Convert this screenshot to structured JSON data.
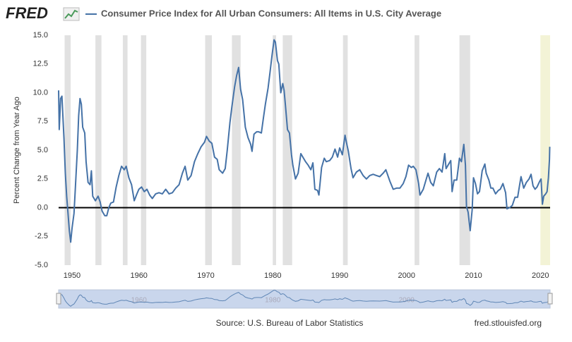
{
  "chart_data": {
    "type": "line",
    "logo": "FRED",
    "ylabel": "Percent Change from Year Ago",
    "source": "Source: U.S. Bureau of Labor Statistics",
    "site": "fred.stlouisfed.org",
    "xlim": [
      1948,
      2021.45
    ],
    "xticks": [
      1950,
      1960,
      1970,
      1980,
      1990,
      2000,
      2010,
      2020
    ],
    "ylim": [
      -5,
      15
    ],
    "yticks": [
      {
        "value": -5,
        "label": "-5.0"
      },
      -2.5,
      {
        "value": 0,
        "label": "0.0"
      },
      2.5,
      {
        "value": 5,
        "label": "5.0"
      },
      7.5,
      {
        "value": 10,
        "label": "10.0"
      },
      12.5,
      {
        "value": 15,
        "label": "15.0"
      }
    ],
    "grid": false,
    "baseline": 0,
    "recession_color": "#e1e1e1",
    "recessions": [
      [
        1948.9,
        1949.8
      ],
      [
        1953.5,
        1954.4
      ],
      [
        1957.6,
        1958.3
      ],
      [
        1960.3,
        1961.1
      ],
      [
        1969.9,
        1970.9
      ],
      [
        1973.9,
        1975.2
      ],
      [
        1980.0,
        1980.5
      ],
      [
        1981.5,
        1982.9
      ],
      [
        1990.5,
        1991.2
      ],
      [
        2001.2,
        2001.9
      ],
      [
        2007.9,
        2009.5
      ]
    ],
    "highlight_color": "#f3f3d6",
    "highlight": [
      2020.0,
      2021.45
    ],
    "navigator_ticks": [
      1960,
      1980,
      2000
    ],
    "x": [
      1948.0,
      1948.1,
      1948.3,
      1948.5,
      1948.8,
      1949.0,
      1949.2,
      1949.4,
      1949.6,
      1949.8,
      1950.0,
      1950.3,
      1950.5,
      1950.8,
      1951.0,
      1951.2,
      1951.4,
      1951.6,
      1951.9,
      1952.1,
      1952.4,
      1952.7,
      1952.9,
      1953.1,
      1953.5,
      1953.9,
      1954.2,
      1954.5,
      1954.9,
      1955.2,
      1955.5,
      1955.8,
      1956.2,
      1956.6,
      1957.0,
      1957.4,
      1957.8,
      1958.1,
      1958.5,
      1958.9,
      1959.3,
      1959.7,
      1960.0,
      1960.4,
      1960.8,
      1961.2,
      1961.6,
      1962.0,
      1962.5,
      1963.0,
      1963.5,
      1964.0,
      1964.5,
      1965.0,
      1965.5,
      1966.0,
      1966.5,
      1966.9,
      1967.3,
      1967.8,
      1968.3,
      1968.8,
      1969.3,
      1969.8,
      1970.1,
      1970.5,
      1970.9,
      1971.3,
      1971.7,
      1972.0,
      1972.5,
      1972.9,
      1973.2,
      1973.6,
      1973.9,
      1974.3,
      1974.6,
      1974.9,
      1975.2,
      1975.5,
      1975.9,
      1976.3,
      1976.7,
      1976.9,
      1977.2,
      1977.6,
      1977.9,
      1978.3,
      1978.6,
      1978.9,
      1979.3,
      1979.6,
      1979.9,
      1980.2,
      1980.4,
      1980.7,
      1980.9,
      1981.2,
      1981.5,
      1981.7,
      1981.9,
      1982.2,
      1982.5,
      1982.8,
      1983.0,
      1983.4,
      1983.8,
      1984.2,
      1984.6,
      1984.9,
      1985.3,
      1985.7,
      1986.0,
      1986.3,
      1986.7,
      1986.9,
      1987.3,
      1987.7,
      1988.0,
      1988.5,
      1988.9,
      1989.3,
      1989.7,
      1990.0,
      1990.4,
      1990.8,
      1991.0,
      1991.3,
      1991.7,
      1992.0,
      1992.5,
      1993.0,
      1993.5,
      1994.0,
      1994.5,
      1995.0,
      1995.5,
      1996.0,
      1996.5,
      1996.9,
      1997.5,
      1998.0,
      1998.5,
      1999.0,
      1999.5,
      1999.9,
      2000.3,
      2000.7,
      2001.0,
      2001.4,
      2001.8,
      2002.0,
      2002.5,
      2002.9,
      2003.2,
      2003.6,
      2004.0,
      2004.5,
      2004.9,
      2005.3,
      2005.7,
      2005.9,
      2006.3,
      2006.6,
      2006.8,
      2007.1,
      2007.5,
      2007.9,
      2008.2,
      2008.55,
      2008.8,
      2008.95,
      2009.2,
      2009.5,
      2009.8,
      2010.0,
      2010.3,
      2010.6,
      2010.9,
      2011.3,
      2011.7,
      2011.9,
      2012.3,
      2012.6,
      2012.9,
      2013.3,
      2013.7,
      2014.0,
      2014.4,
      2014.8,
      2015.0,
      2015.4,
      2015.8,
      2016.2,
      2016.6,
      2016.9,
      2017.1,
      2017.5,
      2017.9,
      2018.3,
      2018.6,
      2018.9,
      2019.2,
      2019.5,
      2019.9,
      2020.1,
      2020.3,
      2020.5,
      2020.8,
      2021.0,
      2021.2,
      2021.35,
      2021.4
    ],
    "series": [
      {
        "name": "Consumer Price Index for All Urban Consumers: All Items in U.S. City Average",
        "color": "#4572a7",
        "values": [
          10.2,
          6.8,
          9.5,
          9.7,
          6.0,
          3.0,
          1.0,
          -0.5,
          -2.0,
          -3.0,
          -1.8,
          -0.5,
          1.7,
          5.0,
          8.0,
          9.5,
          9.0,
          7.0,
          6.5,
          4.0,
          2.2,
          2.0,
          3.2,
          1.0,
          0.6,
          1.0,
          0.5,
          -0.3,
          -0.7,
          -0.7,
          0.0,
          0.4,
          0.5,
          1.8,
          2.8,
          3.6,
          3.3,
          3.6,
          2.6,
          2.0,
          0.6,
          1.2,
          1.6,
          1.8,
          1.4,
          1.6,
          1.1,
          0.8,
          1.2,
          1.3,
          1.2,
          1.6,
          1.2,
          1.3,
          1.7,
          2.0,
          3.0,
          3.6,
          2.4,
          2.8,
          4.0,
          4.7,
          5.3,
          5.7,
          6.2,
          5.8,
          5.6,
          4.4,
          4.2,
          3.3,
          3.0,
          3.4,
          5.0,
          7.4,
          8.8,
          10.5,
          11.5,
          12.2,
          10.3,
          9.4,
          7.0,
          6.1,
          5.5,
          4.9,
          6.4,
          6.6,
          6.6,
          6.5,
          7.8,
          9.0,
          10.4,
          11.8,
          13.3,
          14.6,
          14.4,
          12.8,
          12.5,
          10.0,
          10.8,
          10.2,
          8.9,
          6.8,
          6.5,
          4.6,
          3.7,
          2.5,
          3.0,
          4.7,
          4.3,
          4.0,
          3.7,
          3.3,
          3.9,
          1.6,
          1.5,
          1.1,
          3.5,
          4.3,
          4.0,
          4.1,
          4.4,
          5.1,
          4.4,
          5.2,
          4.6,
          6.3,
          5.7,
          4.9,
          3.4,
          2.6,
          3.1,
          3.3,
          2.8,
          2.5,
          2.8,
          2.9,
          2.8,
          2.7,
          3.0,
          3.3,
          2.3,
          1.6,
          1.7,
          1.7,
          2.1,
          2.7,
          3.7,
          3.5,
          3.6,
          3.3,
          2.1,
          1.1,
          1.6,
          2.4,
          3.0,
          2.2,
          1.9,
          3.1,
          3.4,
          3.1,
          4.7,
          3.4,
          3.8,
          4.1,
          1.4,
          2.4,
          2.4,
          4.3,
          4.0,
          5.5,
          3.7,
          0.1,
          -0.4,
          -2.0,
          -0.2,
          2.6,
          2.1,
          1.2,
          1.4,
          3.2,
          3.8,
          3.0,
          2.4,
          1.7,
          1.7,
          1.2,
          1.5,
          1.6,
          2.1,
          1.3,
          -0.1,
          0.0,
          0.2,
          0.9,
          0.9,
          2.0,
          2.7,
          1.7,
          2.2,
          2.5,
          2.9,
          1.9,
          1.6,
          1.8,
          2.3,
          2.5,
          0.3,
          1.0,
          1.2,
          1.4,
          2.6,
          4.2,
          5.3
        ]
      }
    ]
  }
}
